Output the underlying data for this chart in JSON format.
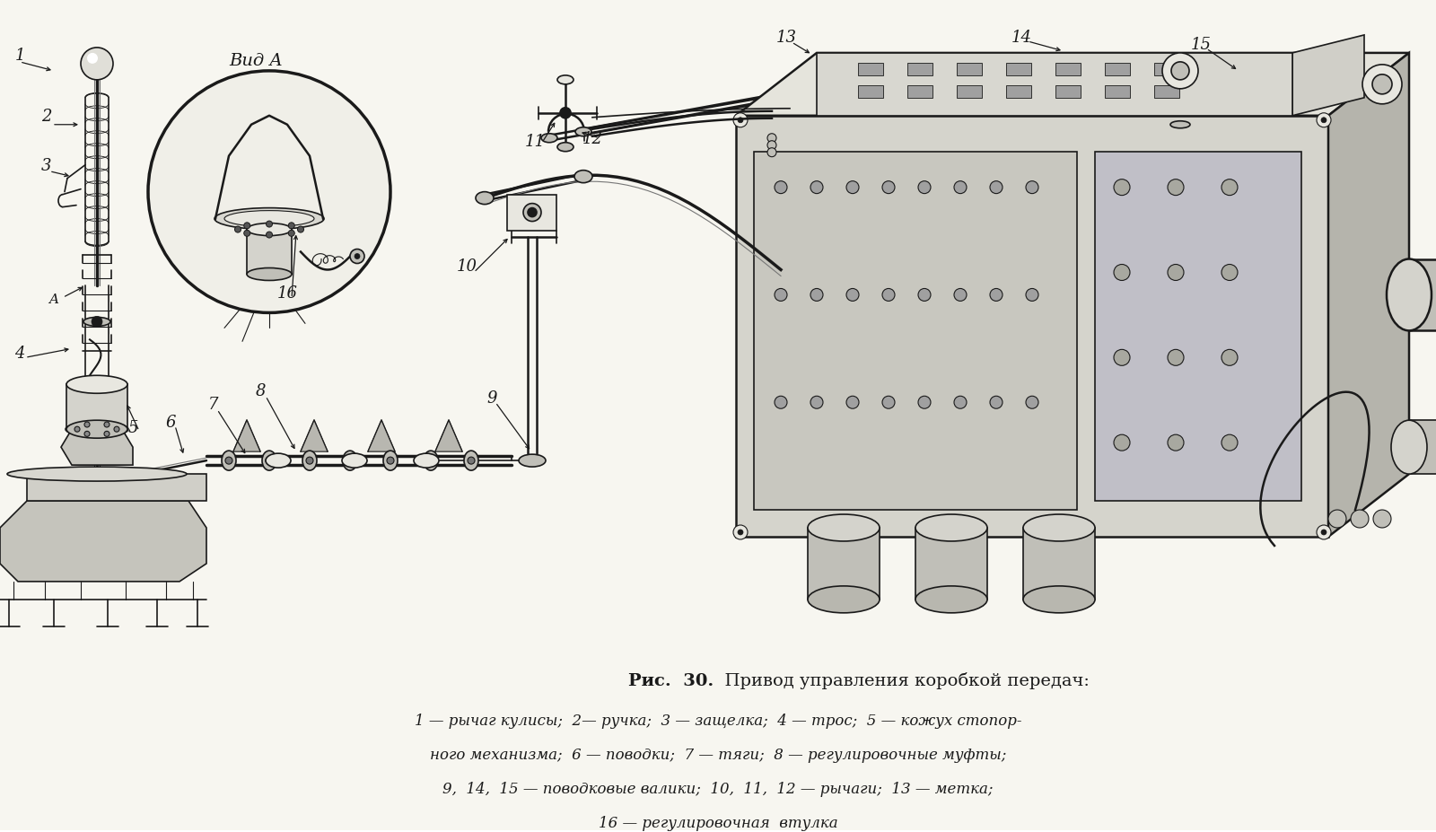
{
  "background_color": "#f0efe8",
  "white": "#ffffff",
  "title_bold": "Рис.  30.",
  "title_normal": "  Привод управления коробкой передач:",
  "caption_line1": "1 — рычаг кулисы;  2— ручка;  3 — защелка;  4 — трос;  5 — кожух стопор-",
  "caption_line2": "ного механизма;  6 — поводки;  7 — тяги;  8 — регулировочные муфты;",
  "caption_line3": "9,  14,  15 — поводковые валики;  10,  11,  12 — рычаги;  13 — метка;",
  "caption_line4": "16 — регулировочная  втулка",
  "vid_a_label": "Вид A",
  "fig_width": 16.0,
  "fig_height": 9.28,
  "dpi": 100,
  "col": "#1a1a1a",
  "col_light": "#777777",
  "col_fill": "#d4d3cc",
  "col_fill2": "#c0bfb8",
  "col_fill3": "#e8e7e0",
  "col_fill4": "#b8b7af"
}
